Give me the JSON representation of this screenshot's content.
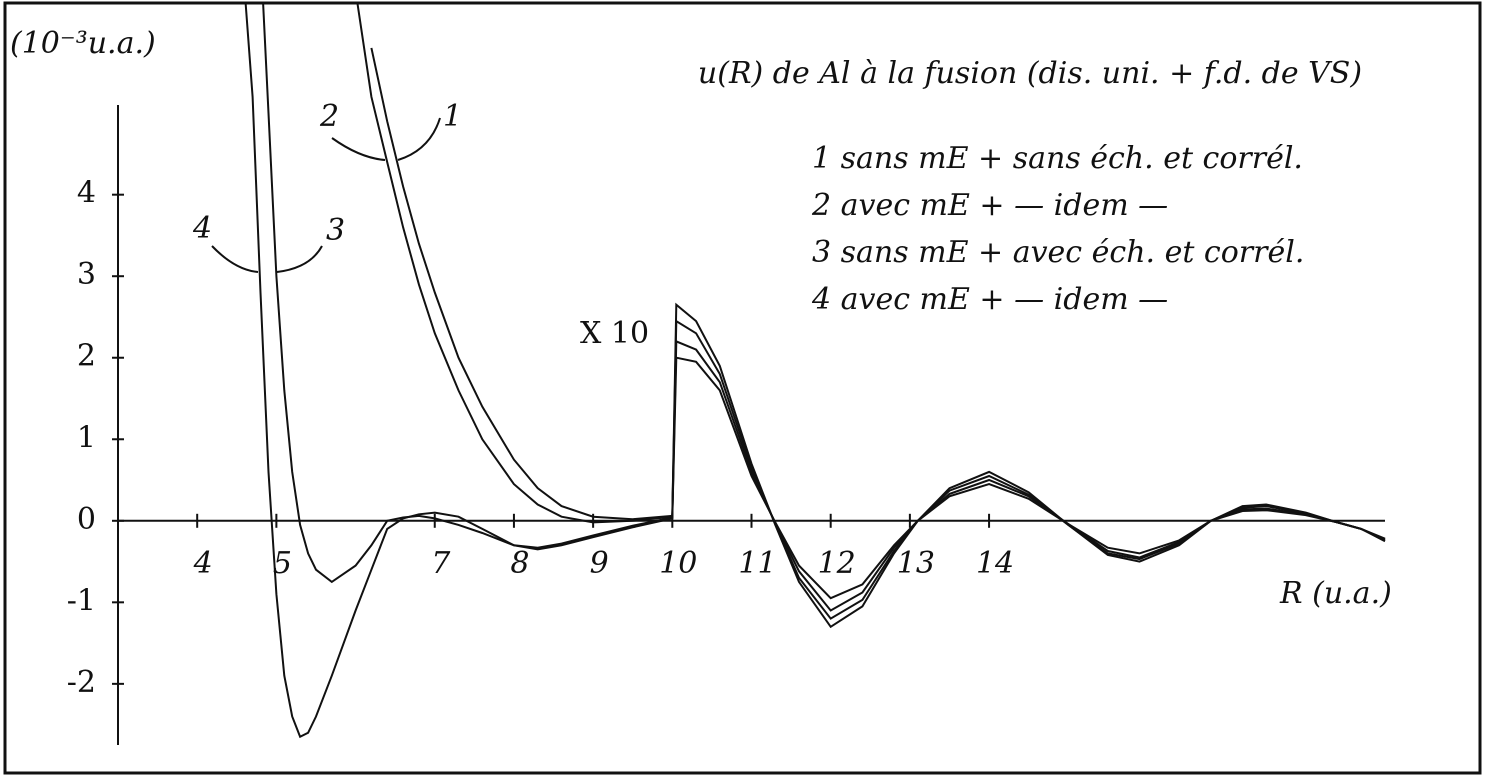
{
  "chart_data": {
    "type": "line",
    "title": "u(R) de Al à la fusion (dis. uni. + f.d. de VS)",
    "y_label": "(10⁻³u.a.)",
    "x_label": "R (u.a.)",
    "annotation": "X 10",
    "curve_labels": [
      "1",
      "2",
      "3",
      "4"
    ],
    "xlim": [
      3,
      19
    ],
    "ylim": [
      -2.75,
      5.1
    ],
    "xticks": [
      4,
      5,
      7,
      8,
      9,
      10,
      11,
      12,
      13,
      14
    ],
    "yticks": [
      -2,
      -1,
      0,
      1,
      2,
      3,
      4
    ],
    "x": [
      4.6,
      4.7,
      4.8,
      4.9,
      5.0,
      5.1,
      5.2,
      5.3,
      5.4,
      5.5,
      5.7,
      6.0,
      6.2,
      6.4,
      6.6,
      6.8,
      7.0,
      7.3,
      7.6,
      8.0,
      8.3,
      8.6,
      9.0,
      9.5,
      10.0,
      10.05,
      10.3,
      10.6,
      11.0,
      11.3,
      11.6,
      12.0,
      12.4,
      12.8,
      13.1,
      13.5,
      14.0,
      14.5,
      15.0,
      15.5,
      15.9,
      16.4,
      16.8,
      17.2,
      17.5,
      18.0,
      18.4,
      18.7,
      19.0
    ],
    "series": [
      {
        "name": "1 sans mE + sans éch. et corrél.",
        "color": "#111111",
        "values": [
          null,
          null,
          null,
          null,
          null,
          null,
          null,
          null,
          null,
          null,
          null,
          null,
          5.8,
          4.9,
          4.1,
          3.4,
          2.8,
          2.0,
          1.4,
          0.75,
          0.4,
          0.18,
          0.05,
          0.02,
          0.06,
          2.65,
          2.45,
          1.9,
          0.7,
          -0.05,
          -0.75,
          -1.3,
          -1.05,
          -0.4,
          0,
          0.4,
          0.6,
          0.35,
          -0.05,
          -0.42,
          -0.5,
          -0.3,
          0,
          0.18,
          0.2,
          0.1,
          -0.02,
          -0.1,
          -0.25
        ]
      },
      {
        "name": "2 avec mE + — idem —",
        "color": "#111111",
        "values": [
          null,
          null,
          null,
          null,
          null,
          null,
          null,
          null,
          null,
          null,
          null,
          6.5,
          5.2,
          4.4,
          3.6,
          2.9,
          2.3,
          1.6,
          1.0,
          0.45,
          0.2,
          0.05,
          -0.02,
          0,
          0.05,
          2.45,
          2.3,
          1.8,
          0.65,
          -0.04,
          -0.7,
          -1.2,
          -0.97,
          -0.37,
          0,
          0.37,
          0.55,
          0.32,
          -0.05,
          -0.4,
          -0.47,
          -0.28,
          0,
          0.16,
          0.18,
          0.09,
          -0.02,
          -0.1,
          -0.24
        ]
      },
      {
        "name": "3 sans mE + avec éch. et corrél.",
        "color": "#111111",
        "values": [
          null,
          null,
          7,
          5.0,
          3.0,
          1.6,
          0.6,
          -0.05,
          -0.4,
          -0.6,
          -0.75,
          -0.55,
          -0.3,
          0,
          0.04,
          0.06,
          0.03,
          -0.05,
          -0.15,
          -0.3,
          -0.33,
          -0.28,
          -0.18,
          -0.06,
          0.04,
          2.2,
          2.1,
          1.7,
          0.6,
          -0.03,
          -0.62,
          -1.1,
          -0.88,
          -0.33,
          0,
          0.33,
          0.5,
          0.3,
          -0.04,
          -0.37,
          -0.45,
          -0.26,
          0,
          0.14,
          0.15,
          0.08,
          -0.02,
          -0.1,
          -0.23
        ]
      },
      {
        "name": "4 avec mE + — idem —",
        "color": "#111111",
        "values": [
          6.5,
          5.2,
          2.8,
          0.6,
          -0.9,
          -1.9,
          -2.4,
          -2.65,
          -2.6,
          -2.4,
          -1.9,
          -1.1,
          -0.6,
          -0.1,
          0.03,
          0.08,
          0.1,
          0.05,
          -0.1,
          -0.3,
          -0.35,
          -0.3,
          -0.2,
          -0.08,
          0.03,
          2.0,
          1.95,
          1.6,
          0.55,
          -0.02,
          -0.55,
          -0.95,
          -0.78,
          -0.3,
          0,
          0.3,
          0.45,
          0.27,
          -0.04,
          -0.33,
          -0.4,
          -0.24,
          0,
          0.12,
          0.13,
          0.07,
          -0.02,
          -0.1,
          -0.22
        ]
      }
    ]
  }
}
